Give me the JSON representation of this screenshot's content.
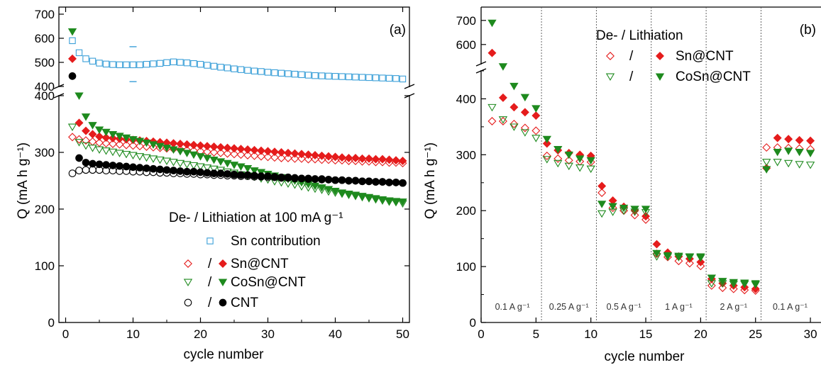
{
  "chart_data": [
    {
      "panel": "(a)",
      "type": "scatter",
      "xlabel": "cycle number",
      "ylabel": "Q (mA h g⁻¹)",
      "xlim": [
        -1,
        51
      ],
      "xticks": [
        "0",
        "10",
        "20",
        "30",
        "40",
        "50"
      ],
      "yticks_lower": [
        "0",
        "100",
        "200",
        "300",
        "400"
      ],
      "yticks_upper": [
        "400",
        "500",
        "600",
        "700"
      ],
      "ylim_lower": [
        0,
        400
      ],
      "ylim_upper": [
        400,
        700
      ],
      "axis_break": true,
      "legend_title": "De- / Lithiation at 100 mA g⁻¹",
      "legend_items": [
        {
          "label": "Sn contribution"
        },
        {
          "label": "Sn@CNT",
          "sep": "/"
        },
        {
          "label": "CoSn@CNT",
          "sep": "/"
        },
        {
          "label": "CNT",
          "sep": "/"
        }
      ],
      "colors": {
        "sn_contribution": "#3a9fd8",
        "sn_cnt": "#e51c1c",
        "cosn_cnt": "#1e8a1e",
        "cnt": "#000000"
      },
      "series": [
        {
          "name": "Sn contribution",
          "marker": "open-square",
          "x": [
            1,
            2,
            3,
            4,
            5,
            6,
            7,
            8,
            9,
            10,
            11,
            12,
            13,
            14,
            15,
            16,
            17,
            18,
            19,
            20,
            21,
            22,
            23,
            24,
            25,
            26,
            27,
            28,
            29,
            30,
            31,
            32,
            33,
            34,
            35,
            36,
            37,
            38,
            39,
            40,
            41,
            42,
            43,
            44,
            45,
            46,
            47,
            48,
            49,
            50
          ],
          "y": [
            590,
            540,
            515,
            505,
            497,
            493,
            491,
            490,
            490,
            490,
            490,
            492,
            494,
            496,
            499,
            502,
            500,
            498,
            495,
            492,
            488,
            484,
            480,
            477,
            473,
            470,
            467,
            464,
            462,
            459,
            457,
            455,
            453,
            451,
            449,
            447,
            445,
            444,
            443,
            442,
            441,
            440,
            439,
            438,
            437,
            436,
            435,
            434,
            433,
            431
          ]
        },
        {
          "name": "Sn@CNT delithiation",
          "marker": "open-diamond",
          "x": [
            1,
            2,
            3,
            4,
            5,
            6,
            7,
            8,
            9,
            10,
            11,
            12,
            13,
            14,
            15,
            16,
            17,
            18,
            19,
            20,
            21,
            22,
            23,
            24,
            25,
            26,
            27,
            28,
            29,
            30,
            31,
            32,
            33,
            34,
            35,
            36,
            37,
            38,
            39,
            40,
            41,
            42,
            43,
            44,
            45,
            46,
            47,
            48,
            49,
            50
          ],
          "y": [
            327,
            323,
            321,
            319,
            317,
            316,
            315,
            314,
            313,
            312,
            311,
            310,
            309,
            308,
            307,
            306,
            305,
            304,
            303,
            302,
            301,
            300,
            299,
            298,
            297,
            296,
            295,
            294,
            293,
            292,
            291,
            290,
            290,
            289,
            289,
            288,
            288,
            287,
            287,
            286,
            286,
            285,
            285,
            284,
            284,
            283,
            283,
            282,
            282,
            281
          ]
        },
        {
          "name": "Sn@CNT lithiation",
          "marker": "filled-diamond",
          "x": [
            1,
            2,
            3,
            4,
            5,
            6,
            7,
            8,
            9,
            10,
            11,
            12,
            13,
            14,
            15,
            16,
            17,
            18,
            19,
            20,
            21,
            22,
            23,
            24,
            25,
            26,
            27,
            28,
            29,
            30,
            31,
            32,
            33,
            34,
            35,
            36,
            37,
            38,
            39,
            40,
            41,
            42,
            43,
            44,
            45,
            46,
            47,
            48,
            49,
            50
          ],
          "y": [
            515,
            352,
            338,
            332,
            328,
            326,
            325,
            324,
            323,
            322,
            321,
            320,
            319,
            318,
            317,
            316,
            315,
            314,
            313,
            312,
            311,
            310,
            309,
            308,
            307,
            306,
            305,
            304,
            303,
            302,
            301,
            300,
            299,
            298,
            297,
            296,
            295,
            294,
            293,
            292,
            291,
            290,
            290,
            289,
            289,
            288,
            288,
            287,
            286,
            285
          ]
        },
        {
          "name": "CoSn@CNT delithiation",
          "marker": "open-triangle-down",
          "x": [
            1,
            2,
            3,
            4,
            5,
            6,
            7,
            8,
            9,
            10,
            11,
            12,
            13,
            14,
            15,
            16,
            17,
            18,
            19,
            20,
            21,
            22,
            23,
            24,
            25,
            26,
            27,
            28,
            29,
            30,
            31,
            32,
            33,
            34,
            35,
            36,
            37,
            38,
            39,
            40,
            41,
            42,
            43,
            44,
            45,
            46,
            47,
            48,
            49,
            50
          ],
          "y": [
            345,
            318,
            312,
            308,
            305,
            303,
            301,
            299,
            297,
            295,
            293,
            291,
            289,
            287,
            285,
            283,
            281,
            279,
            277,
            275,
            273,
            271,
            269,
            266,
            264,
            261,
            259,
            257,
            254,
            252,
            249,
            247,
            245,
            243,
            240,
            238,
            236,
            234,
            231,
            229,
            227,
            225,
            223,
            221,
            219,
            217,
            215,
            213,
            212,
            210
          ]
        },
        {
          "name": "CoSn@CNT lithiation",
          "marker": "filled-triangle-down",
          "x": [
            1,
            2,
            3,
            4,
            5,
            6,
            7,
            8,
            9,
            10,
            11,
            12,
            13,
            14,
            15,
            16,
            17,
            18,
            19,
            20,
            21,
            22,
            23,
            24,
            25,
            26,
            27,
            28,
            29,
            30,
            31,
            32,
            33,
            34,
            35,
            36,
            37,
            38,
            39,
            40,
            41,
            42,
            43,
            44,
            45,
            46,
            47,
            48,
            49,
            50
          ],
          "y": [
            628,
            400,
            363,
            348,
            340,
            336,
            332,
            329,
            326,
            323,
            320,
            317,
            314,
            311,
            308,
            305,
            302,
            299,
            296,
            293,
            290,
            287,
            284,
            281,
            278,
            275,
            272,
            268,
            265,
            262,
            259,
            256,
            253,
            250,
            247,
            244,
            241,
            238,
            235,
            232,
            229,
            227,
            225,
            223,
            221,
            219,
            217,
            215,
            214,
            213
          ]
        },
        {
          "name": "CNT delithiation",
          "marker": "open-circle",
          "x": [
            1,
            2,
            3,
            4,
            5,
            6,
            7,
            8,
            9,
            10,
            11,
            12,
            13,
            14,
            15,
            16,
            17,
            18,
            19,
            20,
            21,
            22,
            23,
            24,
            25,
            26,
            27,
            28,
            29,
            30,
            31,
            32,
            33,
            34,
            35,
            36,
            37,
            38,
            39,
            40,
            41,
            42,
            43,
            44,
            45,
            46,
            47,
            48,
            49,
            50
          ],
          "y": [
            263,
            268,
            269,
            269,
            269,
            268,
            268,
            267,
            267,
            266,
            266,
            265,
            265,
            264,
            264,
            263,
            263,
            262,
            262,
            261,
            261,
            260,
            260,
            259,
            259,
            258,
            258,
            257,
            257,
            256,
            256,
            255,
            255,
            254,
            254,
            253,
            253,
            252,
            252,
            251,
            251,
            250,
            250,
            249,
            249,
            248,
            248,
            247,
            247,
            246
          ]
        },
        {
          "name": "CNT lithiation",
          "marker": "filled-circle",
          "x": [
            1,
            2,
            3,
            4,
            5,
            6,
            7,
            8,
            9,
            10,
            11,
            12,
            13,
            14,
            15,
            16,
            17,
            18,
            19,
            20,
            21,
            22,
            23,
            24,
            25,
            26,
            27,
            28,
            29,
            30,
            31,
            32,
            33,
            34,
            35,
            36,
            37,
            38,
            39,
            40,
            41,
            42,
            43,
            44,
            45,
            46,
            47,
            48,
            49,
            50
          ],
          "y": [
            443,
            290,
            282,
            280,
            279,
            278,
            277,
            276,
            275,
            274,
            273,
            272,
            271,
            270,
            269,
            268,
            267,
            266,
            266,
            265,
            264,
            263,
            263,
            262,
            261,
            260,
            260,
            259,
            258,
            258,
            257,
            256,
            256,
            255,
            254,
            254,
            253,
            253,
            252,
            251,
            251,
            250,
            250,
            249,
            249,
            248,
            248,
            247,
            247,
            246
          ]
        }
      ],
      "outlier_marks": [
        {
          "x": 10,
          "y": 565
        },
        {
          "x": 10,
          "y": 420
        }
      ]
    },
    {
      "panel": "(b)",
      "type": "scatter",
      "xlabel": "cycle number",
      "ylabel": "Q (mA h g⁻¹)",
      "xlim": [
        0,
        30.5
      ],
      "xticks": [
        "0",
        "5",
        "10",
        "15",
        "20",
        "25",
        "30"
      ],
      "yticks_lower": [
        "0",
        "100",
        "200",
        "300",
        "400"
      ],
      "yticks_upper": [
        "600",
        "700"
      ],
      "ylim_lower": [
        0,
        450
      ],
      "ylim_upper": [
        520,
        720
      ],
      "axis_break": true,
      "legend_title": "De- / Lithiation",
      "legend_items": [
        {
          "label": "Sn@CNT",
          "sep": "/"
        },
        {
          "label": "CoSn@CNT",
          "sep": "/"
        }
      ],
      "rate_labels": [
        "0.1 A g⁻¹",
        "0.25 A g⁻¹",
        "0.5 A g⁻¹",
        "1 A g⁻¹",
        "2 A g⁻¹",
        "0.1 A g⁻¹"
      ],
      "rate_boundaries": [
        5.5,
        10.5,
        15.5,
        20.5,
        25.5
      ],
      "colors": {
        "sn_cnt": "#e51c1c",
        "cosn_cnt": "#1e8a1e"
      },
      "series": [
        {
          "name": "Sn@CNT delithiation",
          "marker": "open-diamond",
          "x": [
            1,
            2,
            3,
            4,
            5,
            6,
            7,
            8,
            9,
            10,
            11,
            12,
            13,
            14,
            15,
            16,
            17,
            18,
            19,
            20,
            21,
            22,
            23,
            24,
            25,
            26,
            27,
            28,
            29,
            30
          ],
          "y": [
            360,
            360,
            355,
            348,
            343,
            298,
            293,
            290,
            288,
            287,
            232,
            205,
            200,
            192,
            184,
            123,
            117,
            110,
            106,
            101,
            66,
            62,
            60,
            58,
            57,
            313,
            313,
            312,
            311,
            310
          ]
        },
        {
          "name": "Sn@CNT lithiation",
          "marker": "filled-diamond",
          "x": [
            1,
            2,
            3,
            4,
            5,
            6,
            7,
            8,
            9,
            10,
            11,
            12,
            13,
            14,
            15,
            16,
            17,
            18,
            19,
            20,
            21,
            22,
            23,
            24,
            25,
            26,
            27,
            28,
            29,
            30
          ],
          "y": [
            565,
            402,
            385,
            376,
            370,
            320,
            308,
            303,
            300,
            298,
            244,
            218,
            207,
            200,
            190,
            140,
            125,
            118,
            114,
            108,
            78,
            70,
            66,
            63,
            60,
            276,
            330,
            328,
            326,
            325
          ]
        },
        {
          "name": "CoSn@CNT delithiation",
          "marker": "open-triangle-down",
          "x": [
            1,
            2,
            3,
            4,
            5,
            6,
            7,
            8,
            9,
            10,
            11,
            12,
            13,
            14,
            15,
            16,
            17,
            18,
            19,
            20,
            21,
            22,
            23,
            24,
            25,
            26,
            27,
            28,
            29,
            30
          ],
          "y": [
            385,
            363,
            350,
            340,
            330,
            292,
            285,
            280,
            277,
            275,
            195,
            198,
            200,
            198,
            197,
            118,
            118,
            117,
            117,
            116,
            70,
            70,
            69,
            69,
            68,
            287,
            287,
            285,
            283,
            282
          ]
        },
        {
          "name": "CoSn@CNT lithiation",
          "marker": "filled-triangle-down",
          "x": [
            1,
            2,
            3,
            4,
            5,
            6,
            7,
            8,
            9,
            10,
            11,
            12,
            13,
            14,
            15,
            16,
            17,
            18,
            19,
            20,
            21,
            22,
            23,
            24,
            25,
            26,
            27,
            28,
            29,
            30
          ],
          "y": [
            690,
            458,
            423,
            403,
            383,
            328,
            310,
            300,
            293,
            290,
            212,
            208,
            205,
            203,
            203,
            124,
            120,
            119,
            118,
            118,
            80,
            74,
            72,
            71,
            70,
            274,
            305,
            307,
            305,
            303
          ]
        }
      ]
    }
  ]
}
